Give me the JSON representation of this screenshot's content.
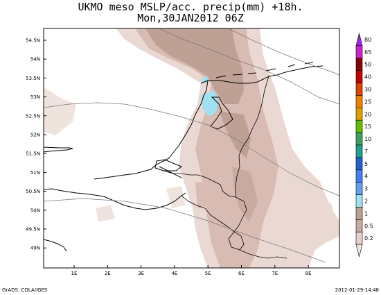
{
  "title": {
    "line1": "UKMO meso MSLP/acc. precip(mm) +18h.",
    "line2": "Mon,30JAN2012 06Z"
  },
  "axes": {
    "lat_labels": [
      "54.5N",
      "54N",
      "53.5N",
      "53N",
      "52.5N",
      "52N",
      "51.5N",
      "51N",
      "50.5N",
      "50N",
      "49.5N",
      "49N"
    ],
    "lon_labels": [
      "1E",
      "2E",
      "3E",
      "4E",
      "5E",
      "6E",
      "7E",
      "8E"
    ]
  },
  "colorbar": {
    "labels": [
      "80",
      "65",
      "50",
      "40",
      "30",
      "25",
      "20",
      "15",
      "10",
      "7",
      "5",
      "4",
      "3",
      "2",
      "1",
      "0.5",
      "0.2"
    ],
    "colors": [
      "#a020f0",
      "#d020d0",
      "#8b0000",
      "#c80000",
      "#e04000",
      "#f08000",
      "#e0a000",
      "#60c000",
      "#40a060",
      "#20a090",
      "#2060d0",
      "#4080f0",
      "#60a0f0",
      "#a0e0f0",
      "#bfa090",
      "#c8aaa0",
      "#e8d0c8",
      "#f2e4df"
    ]
  },
  "footer": {
    "left": "GrADS: COLA/IGES",
    "right": "2012-01-29-14:48"
  },
  "colors": {
    "precip_light": "#ead9d3",
    "precip_med": "#d8bbb2",
    "precip_heavy": "#bea095",
    "precip_cyan": "#a0e0f0"
  }
}
